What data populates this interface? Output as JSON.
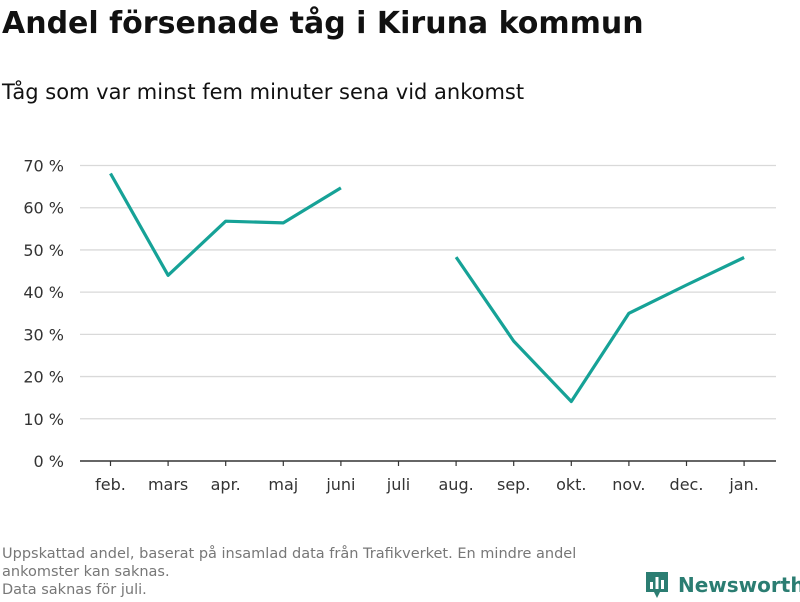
{
  "header": {
    "title": "Andel försenade tåg i Kiruna kommun",
    "subtitle": "Tåg som var minst fem minuter sena vid ankomst"
  },
  "footnote": {
    "line1": "Uppskattad andel, baserat på insamlad data från Trafikverket. En mindre andel ankomster kan saknas.",
    "line2": "Data saknas för juli."
  },
  "brand": {
    "name": "Newsworthy",
    "color": "#2b7d72"
  },
  "colors": {
    "line": "#16a297",
    "grid": "#d9d9d9",
    "axis": "#333333"
  },
  "chart_data": {
    "type": "line",
    "categories": [
      "feb.",
      "mars",
      "apr.",
      "maj",
      "juni",
      "juli",
      "aug.",
      "sep.",
      "okt.",
      "nov.",
      "dec.",
      "jan."
    ],
    "series": [
      {
        "values": [
          68.1,
          44.0,
          56.8,
          56.4,
          64.7,
          null,
          48.3,
          28.4,
          14.1,
          35.0,
          41.7,
          48.2
        ]
      }
    ],
    "ylim": [
      0,
      70
    ],
    "yticks": [
      0,
      10,
      20,
      30,
      40,
      50,
      60,
      70
    ],
    "ytick_labels": [
      "0 %",
      "10 %",
      "20 %",
      "30 %",
      "40 %",
      "50 %",
      "60 %",
      "70 %"
    ],
    "grid": true,
    "xlabel": "",
    "ylabel": ""
  }
}
